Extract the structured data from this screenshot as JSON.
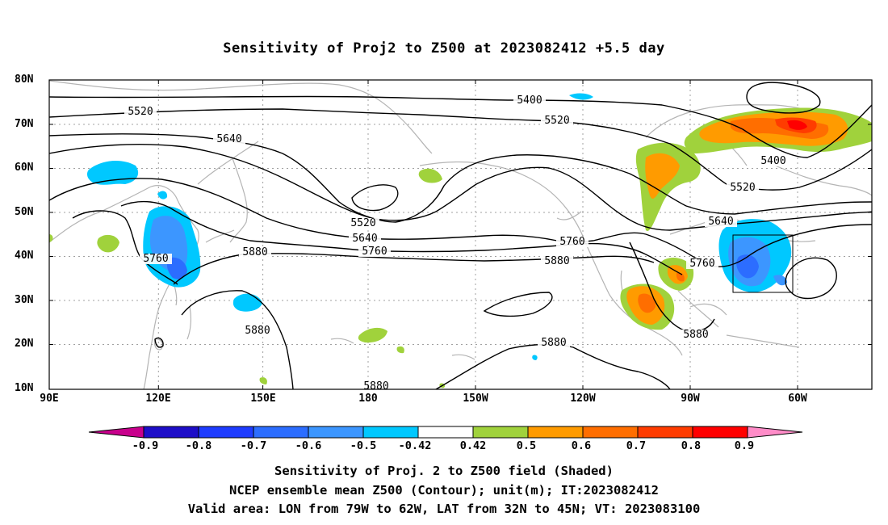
{
  "title": "Sensitivity of Proj2 to Z500 at 2023082412 +5.5 day",
  "axes": {
    "lat_labels": [
      "80N",
      "70N",
      "60N",
      "50N",
      "40N",
      "30N",
      "20N",
      "10N"
    ],
    "lon_labels": [
      "90E",
      "120E",
      "150E",
      "180",
      "150W",
      "120W",
      "90W",
      "60W"
    ]
  },
  "contour_labels": [
    "5400",
    "5400",
    "5520",
    "5520",
    "5520",
    "5520",
    "5640",
    "5640",
    "5640",
    "5760",
    "5760",
    "5760",
    "5760",
    "5880",
    "5880",
    "5880",
    "5880",
    "5880",
    "5880"
  ],
  "colorbar": {
    "labels": [
      "-0.9",
      "-0.8",
      "-0.7",
      "-0.6",
      "-0.5",
      "-0.42",
      "0.42",
      "0.5",
      "0.6",
      "0.7",
      "0.8",
      "0.9"
    ],
    "colors": [
      "#c8008c",
      "#1e0ec8",
      "#1e3cff",
      "#2c6dff",
      "#3c96ff",
      "#00c8ff",
      "#ffffff",
      "#a0d23c",
      "#ff9b00",
      "#ff6e00",
      "#ff3c00",
      "#ff0000",
      "#ff8cc8"
    ]
  },
  "captions": [
    "Sensitivity of Proj. 2 to Z500 field (Shaded)",
    "NCEP ensemble mean Z500 (Contour); unit(m); IT:2023082412",
    "Valid area: LON from 79W to 62W, LAT from 32N to 45N; VT: 2023083100"
  ]
}
